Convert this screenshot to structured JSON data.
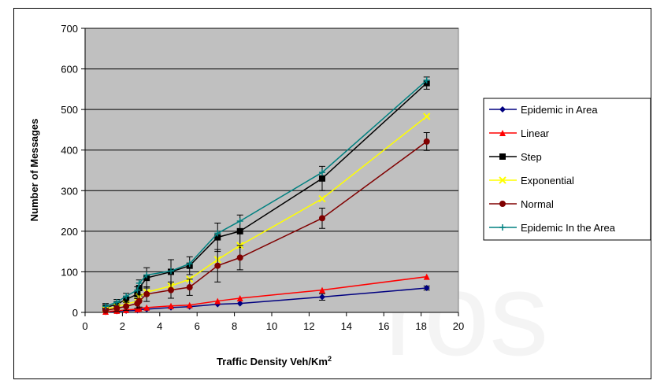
{
  "chart_data": {
    "type": "line",
    "title": "",
    "xlabel": "Traffic Density Veh/Km",
    "xlabel_sup": "2",
    "ylabel": "Number of Messages",
    "xlim": [
      0,
      20
    ],
    "ylim": [
      0,
      700
    ],
    "xticks": [
      0,
      2,
      4,
      6,
      8,
      10,
      12,
      14,
      16,
      18,
      20
    ],
    "yticks": [
      0,
      100,
      200,
      300,
      400,
      500,
      600,
      700
    ],
    "grid": "horizontal",
    "plot_background": "#c0c0c0",
    "legend_position": "right",
    "x": [
      1.1,
      1.7,
      2.2,
      2.8,
      2.9,
      3.3,
      4.6,
      5.6,
      7.1,
      8.3,
      12.7,
      18.3
    ],
    "series": [
      {
        "name": "Epidemic in Area",
        "color": "#000080",
        "marker": "diamond",
        "values": [
          1,
          3,
          4,
          5,
          7,
          8,
          12,
          14,
          20,
          22,
          38,
          60
        ],
        "errors": [
          0,
          0,
          0,
          0,
          0,
          0,
          0,
          0,
          0,
          0,
          8,
          5
        ]
      },
      {
        "name": "Linear",
        "color": "#ff0000",
        "marker": "triangle",
        "values": [
          2,
          4,
          6,
          8,
          10,
          12,
          16,
          18,
          28,
          35,
          55,
          88
        ],
        "errors": [
          0,
          0,
          0,
          0,
          0,
          0,
          0,
          0,
          0,
          0,
          0,
          0
        ]
      },
      {
        "name": "Step",
        "color": "#000000",
        "marker": "square",
        "values": [
          12,
          20,
          32,
          45,
          60,
          85,
          100,
          115,
          185,
          200,
          330,
          565
        ],
        "errors": [
          10,
          12,
          15,
          18,
          20,
          25,
          30,
          22,
          35,
          40,
          30,
          15
        ]
      },
      {
        "name": "Exponential",
        "color": "#ffff00",
        "marker": "x",
        "values": [
          8,
          14,
          20,
          28,
          38,
          50,
          65,
          82,
          130,
          165,
          280,
          483
        ],
        "errors": [
          0,
          0,
          0,
          0,
          0,
          0,
          0,
          0,
          0,
          0,
          0,
          0
        ]
      },
      {
        "name": "Normal",
        "color": "#800000",
        "marker": "circle",
        "values": [
          5,
          10,
          15,
          22,
          28,
          45,
          55,
          62,
          115,
          135,
          232,
          421
        ],
        "errors": [
          5,
          8,
          10,
          12,
          15,
          18,
          20,
          20,
          40,
          30,
          25,
          22
        ]
      },
      {
        "name": "Epidemic In the Area",
        "color": "#008080",
        "marker": "plus",
        "values": [
          15,
          25,
          40,
          55,
          72,
          92,
          102,
          120,
          195,
          225,
          345,
          572
        ],
        "errors": [
          0,
          0,
          0,
          0,
          0,
          0,
          0,
          0,
          0,
          0,
          0,
          0
        ]
      }
    ]
  }
}
